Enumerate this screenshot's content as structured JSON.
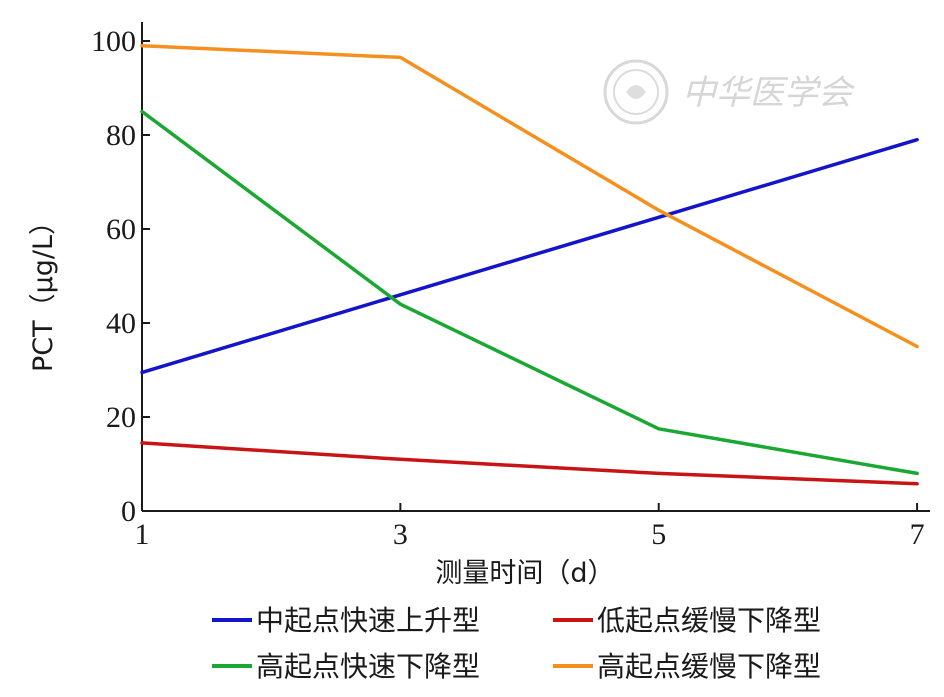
{
  "chart_data": {
    "type": "line",
    "x": [
      1,
      3,
      5,
      7
    ],
    "xlim": [
      1,
      7.1
    ],
    "ylim": [
      0,
      100
    ],
    "xticks": [
      "1",
      "3",
      "5",
      "7"
    ],
    "yticks": [
      "0",
      "20",
      "40",
      "60",
      "80",
      "100"
    ],
    "xlabel": "测量时间（d）",
    "ylabel": "PCT（μg/L）",
    "grid": false,
    "legend_position": "bottom",
    "series": [
      {
        "name": "中起点快速上升型",
        "color": "#1414c8",
        "values": [
          29.5,
          46,
          62.5,
          79
        ]
      },
      {
        "name": "低起点缓慢下降型",
        "color": "#c81414",
        "values": [
          14.5,
          11,
          8,
          5.8
        ]
      },
      {
        "name": "高起点快速下降型",
        "color": "#1aa832",
        "values": [
          85,
          44,
          17.5,
          8
        ]
      },
      {
        "name": "高起点缓慢下降型",
        "color": "#f5901e",
        "values": [
          99,
          96.5,
          64,
          35
        ]
      }
    ]
  },
  "watermark": {
    "text": "中华医学会",
    "icon": "society-seal-icon"
  }
}
